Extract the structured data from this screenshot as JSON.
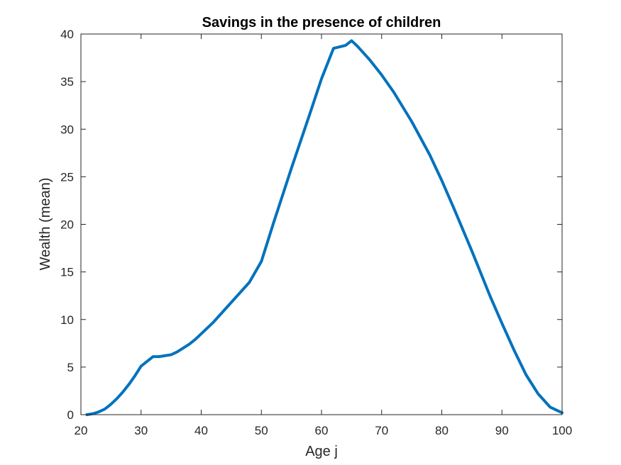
{
  "chart_data": {
    "type": "line",
    "title": "Savings in the presence of children",
    "xlabel": "Age j",
    "ylabel": "Wealth (mean)",
    "xlim": [
      20,
      100
    ],
    "ylim": [
      0,
      40
    ],
    "xticks": [
      20,
      30,
      40,
      50,
      60,
      70,
      80,
      90,
      100
    ],
    "yticks": [
      0,
      5,
      10,
      15,
      20,
      25,
      30,
      35,
      40
    ],
    "grid": false,
    "line_color": "#0072BD",
    "series": [
      {
        "x": [
          21,
          22,
          23,
          24,
          25,
          26,
          27,
          28,
          29,
          30,
          31,
          32,
          33,
          34,
          35,
          36,
          37,
          38,
          39,
          40,
          42,
          44,
          46,
          48,
          50,
          52,
          55,
          58,
          60,
          62,
          64,
          65,
          66,
          68,
          70,
          72,
          75,
          78,
          80,
          82,
          85,
          88,
          90,
          92,
          94,
          96,
          98,
          100
        ],
        "y": [
          0,
          0.1,
          0.3,
          0.6,
          1.1,
          1.7,
          2.4,
          3.2,
          4.1,
          5.1,
          5.6,
          6.1,
          6.1,
          6.2,
          6.3,
          6.6,
          7.0,
          7.4,
          7.9,
          8.5,
          9.7,
          11.1,
          12.5,
          13.9,
          16.1,
          20.1,
          25.9,
          31.5,
          35.3,
          38.5,
          38.8,
          39.3,
          38.7,
          37.3,
          35.7,
          33.9,
          30.8,
          27.3,
          24.6,
          21.7,
          17.2,
          12.5,
          9.6,
          6.8,
          4.2,
          2.2,
          0.8,
          0.2
        ]
      }
    ]
  }
}
